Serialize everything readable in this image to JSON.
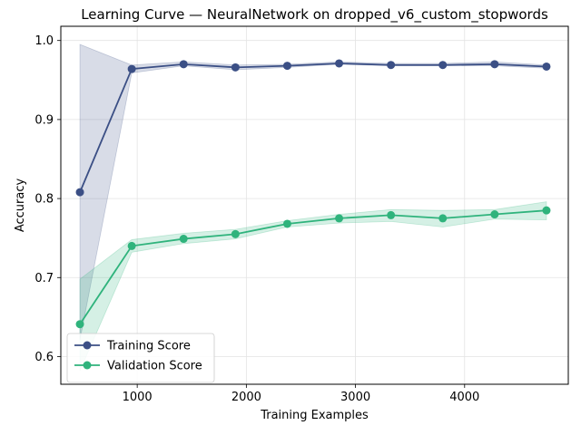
{
  "chart_data": {
    "type": "line",
    "title": "Learning Curve — NeuralNetwork on dropped_v6_custom_stopwords",
    "xlabel": "Training Examples",
    "ylabel": "Accuracy",
    "xlim": [
      300,
      4950
    ],
    "ylim": [
      0.565,
      1.018
    ],
    "xticks": [
      1000,
      2000,
      3000,
      4000
    ],
    "yticks": [
      0.6,
      0.7,
      0.8,
      0.9,
      1.0
    ],
    "grid": true,
    "legend_position": "lower-left",
    "x": [
      475,
      950,
      1425,
      1900,
      2375,
      2850,
      3325,
      3800,
      4275,
      4750
    ],
    "series": [
      {
        "name": "Training Score",
        "color": "#3b4f85",
        "band_color": "#3b4f85",
        "values": [
          0.808,
          0.964,
          0.97,
          0.966,
          0.968,
          0.971,
          0.969,
          0.969,
          0.97,
          0.967
        ],
        "band_low": [
          0.621,
          0.959,
          0.968,
          0.963,
          0.966,
          0.97,
          0.968,
          0.968,
          0.968,
          0.965
        ],
        "band_high": [
          0.995,
          0.969,
          0.973,
          0.969,
          0.97,
          0.973,
          0.971,
          0.971,
          0.973,
          0.969
        ]
      },
      {
        "name": "Validation Score",
        "color": "#2fb37c",
        "band_color": "#2fb37c",
        "values": [
          0.641,
          0.74,
          0.749,
          0.755,
          0.768,
          0.775,
          0.779,
          0.775,
          0.78,
          0.785
        ],
        "band_low": [
          0.582,
          0.732,
          0.743,
          0.749,
          0.764,
          0.769,
          0.771,
          0.764,
          0.774,
          0.773
        ],
        "band_high": [
          0.698,
          0.748,
          0.756,
          0.761,
          0.772,
          0.78,
          0.786,
          0.785,
          0.786,
          0.796
        ]
      }
    ]
  }
}
